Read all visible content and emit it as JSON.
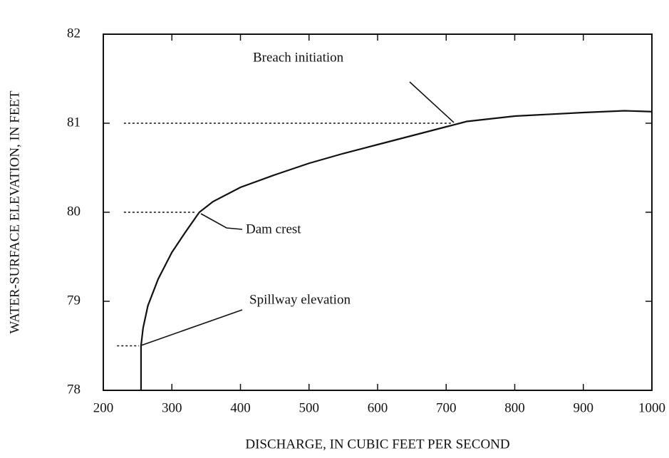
{
  "chart_data": {
    "type": "line",
    "x_label": "DISCHARGE, IN CUBIC FEET PER SECOND",
    "y_label": "WATER-SURFACE ELEVATION, IN FEET",
    "xlim": [
      200,
      1000
    ],
    "xticks": [
      200,
      300,
      400,
      500,
      600,
      700,
      800,
      900,
      1000
    ],
    "ylim": [
      78,
      82
    ],
    "yticks": [
      78,
      79,
      80,
      81,
      82
    ],
    "series": [
      {
        "color": "#111111",
        "x": [
          255,
          255,
          258,
          265,
          280,
          300,
          320,
          340,
          360,
          400,
          450,
          500,
          550,
          600,
          650,
          700,
          730,
          800,
          900,
          960,
          1000
        ],
        "values": [
          78,
          78.5,
          78.7,
          78.95,
          79.25,
          79.55,
          79.78,
          80,
          80.12,
          80.28,
          80.42,
          80.55,
          80.66,
          80.76,
          80.86,
          80.96,
          81.02,
          81.08,
          81.12,
          81.14,
          81.13
        ]
      }
    ],
    "reference_lines": [
      {
        "y": 81,
        "x": [
          230,
          710
        ]
      },
      {
        "y": 80,
        "x": [
          230,
          335
        ]
      },
      {
        "y": 78.5,
        "x": [
          220,
          252
        ]
      }
    ],
    "annotations": [
      "Breach initiation",
      "Dam crest",
      "Spillway elevation"
    ]
  }
}
